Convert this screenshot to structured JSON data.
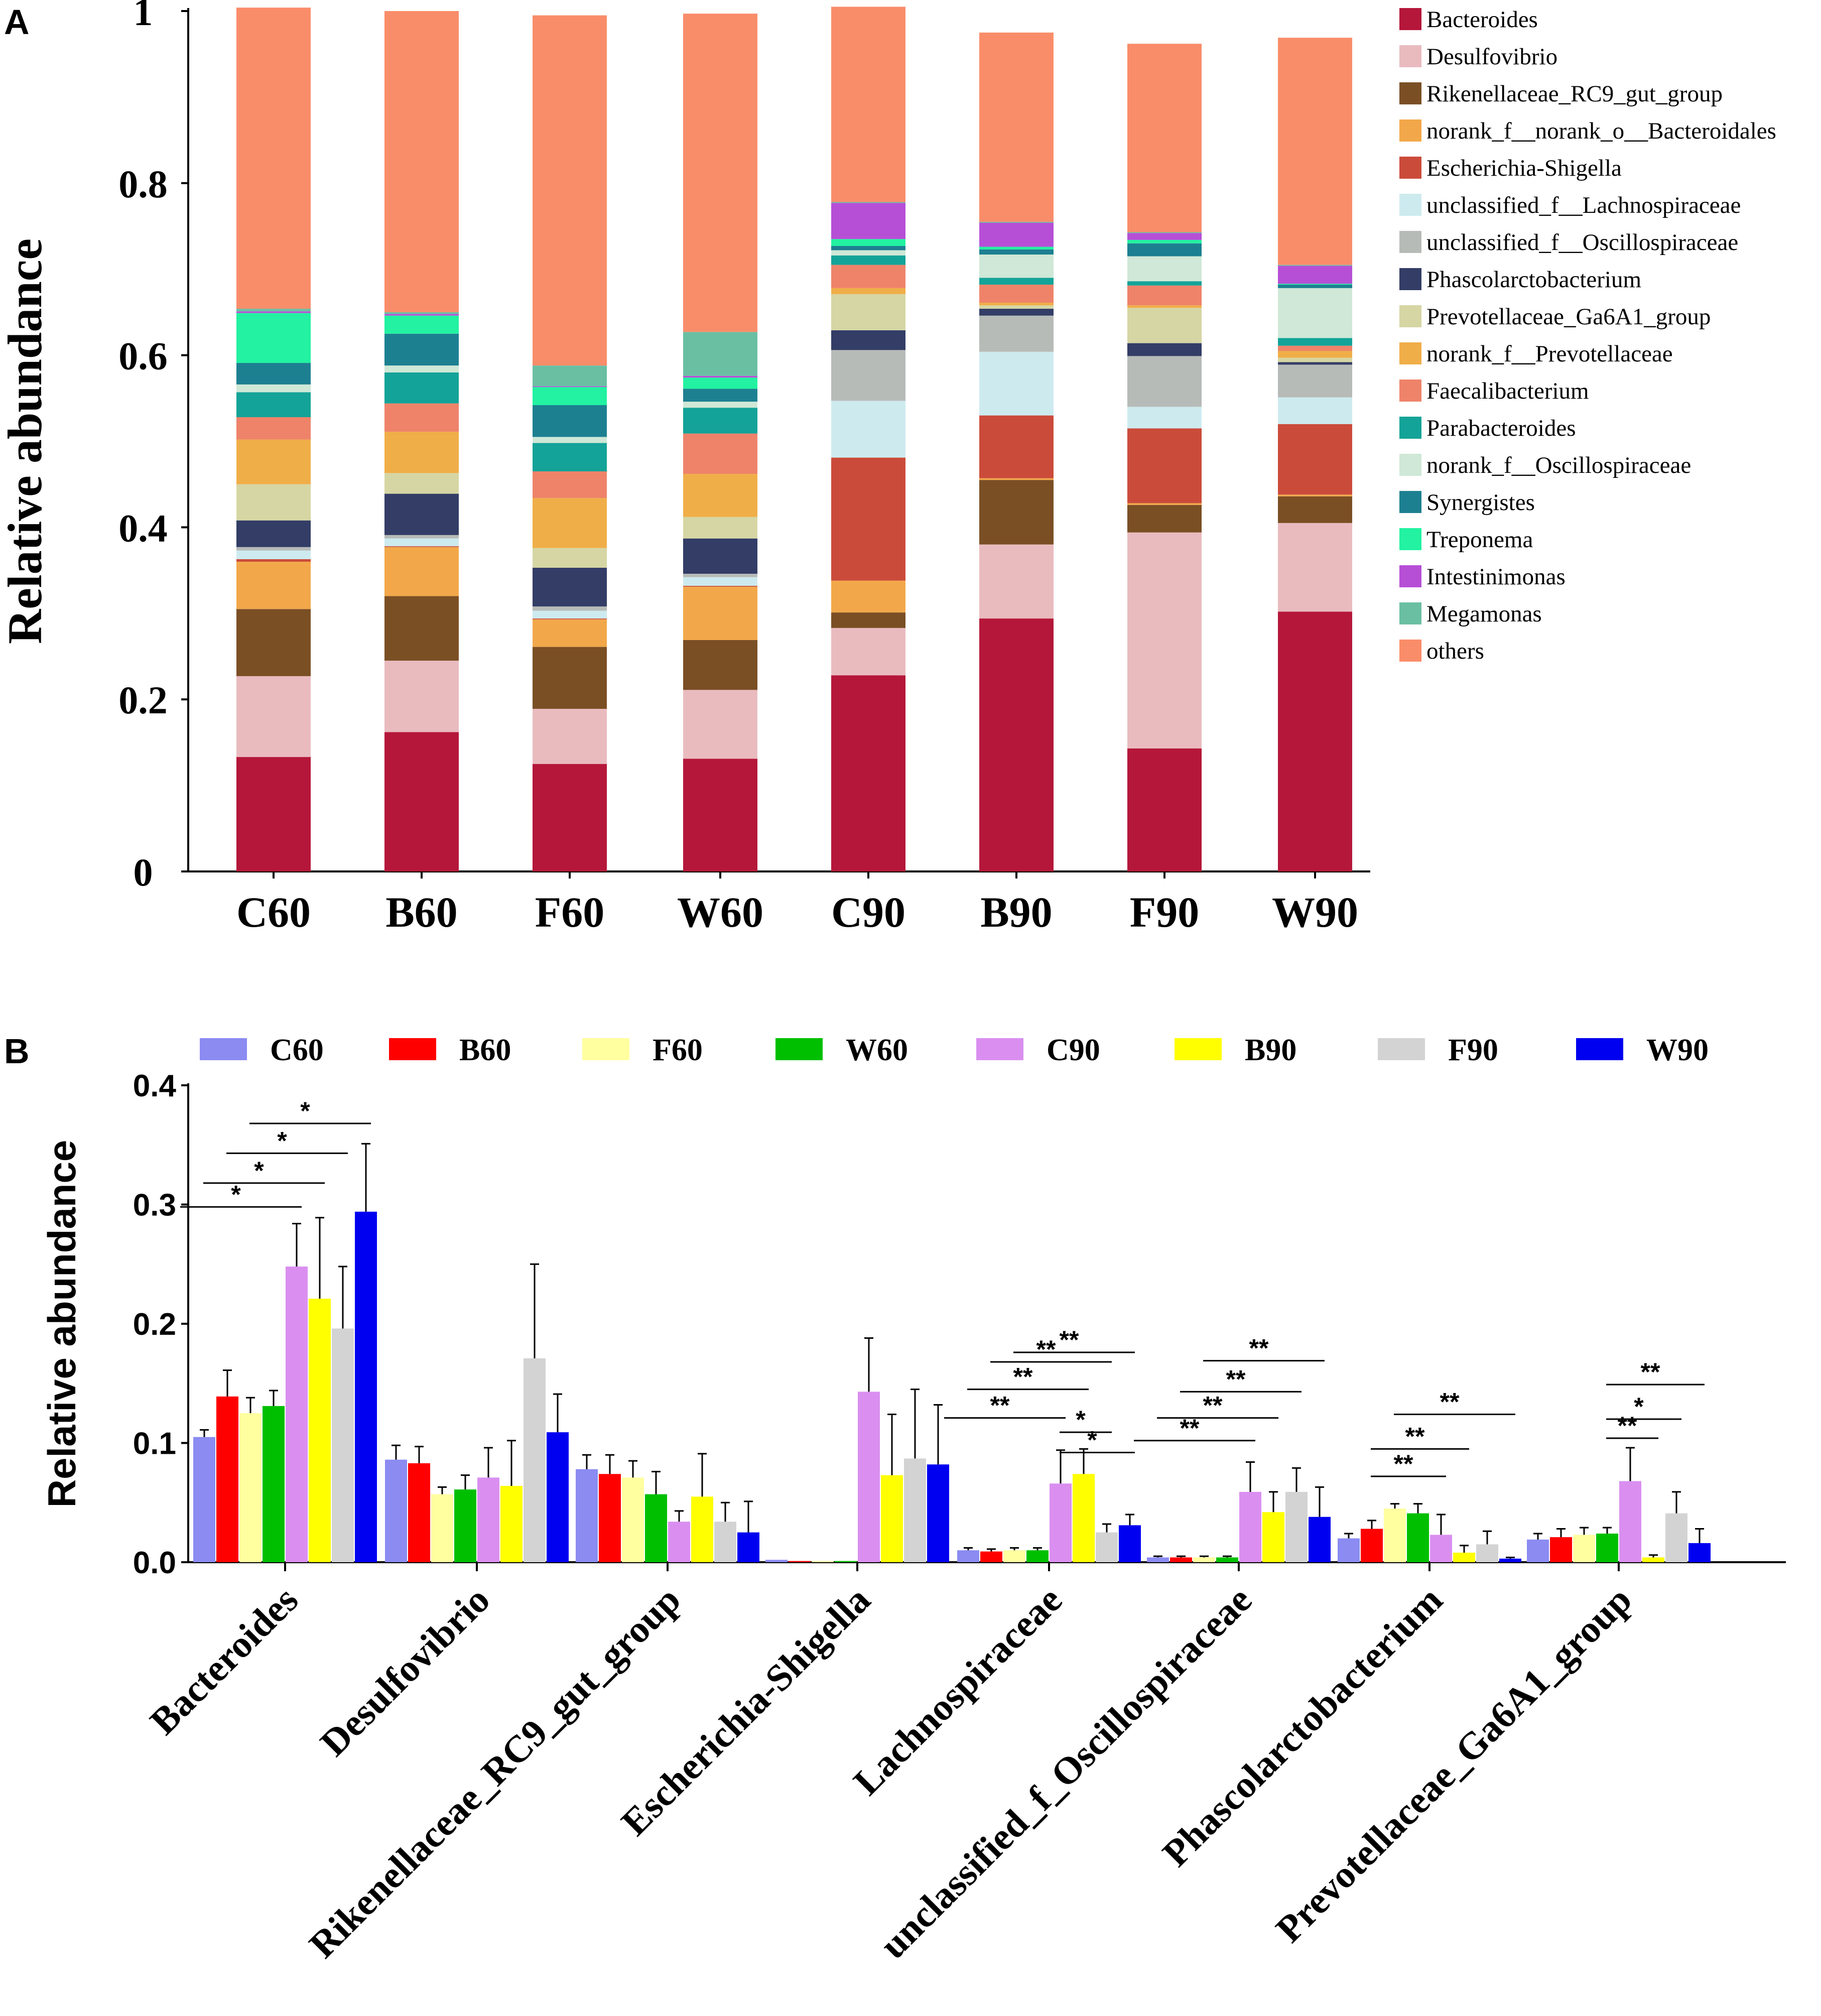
{
  "panel_labels": {
    "a": "A",
    "b": "B"
  },
  "chart_data": [
    {
      "type": "bar",
      "stacked": true,
      "panel": "A",
      "ylabel": "Relative abundance",
      "xlabel": "",
      "ylim": [
        0,
        1
      ],
      "yticks": [
        "0",
        "0.2",
        "0.4",
        "0.6",
        "0.8",
        "1"
      ],
      "ytick_values": [
        0,
        0.2,
        0.4,
        0.6,
        0.8,
        1
      ],
      "categories": [
        "C60",
        "B60",
        "F60",
        "W60",
        "C90",
        "B90",
        "F90",
        "W90"
      ],
      "legend_position": "right",
      "series": [
        {
          "name": "Bacteroides",
          "color": "#B5173A",
          "values": [
            0.133,
            0.162,
            0.125,
            0.131,
            0.228,
            0.294,
            0.143,
            0.302
          ]
        },
        {
          "name": "Desulfovibrio",
          "color": "#E9BBBF",
          "values": [
            0.094,
            0.083,
            0.064,
            0.08,
            0.055,
            0.086,
            0.251,
            0.103
          ]
        },
        {
          "name": "Rikenellaceae_RC9_gut_group",
          "color": "#7B4F24",
          "values": [
            0.078,
            0.075,
            0.072,
            0.058,
            0.018,
            0.075,
            0.032,
            0.031
          ]
        },
        {
          "name": "norank_f__norank_o__Bacteroidales",
          "color": "#F2A84A",
          "values": [
            0.055,
            0.057,
            0.032,
            0.062,
            0.037,
            0.002,
            0.002,
            0.002
          ]
        },
        {
          "name": "Escherichia-Shigella",
          "color": "#CB4B3A",
          "values": [
            0.003,
            0.001,
            0.001,
            0.001,
            0.143,
            0.073,
            0.087,
            0.082
          ]
        },
        {
          "name": "unclassified_f__Lachnospiraceae",
          "color": "#CDEBEF",
          "values": [
            0.01,
            0.009,
            0.009,
            0.01,
            0.066,
            0.074,
            0.025,
            0.031
          ]
        },
        {
          "name": "unclassified_f__Oscillospiraceae",
          "color": "#B7BBB8",
          "values": [
            0.004,
            0.004,
            0.005,
            0.004,
            0.059,
            0.042,
            0.059,
            0.038
          ]
        },
        {
          "name": "Phascolarctobacterium",
          "color": "#333D66",
          "values": [
            0.031,
            0.048,
            0.045,
            0.041,
            0.023,
            0.008,
            0.015,
            0.003
          ]
        },
        {
          "name": "Prevotellaceae_Ga6A1_group",
          "color": "#D6D6A4",
          "values": [
            0.042,
            0.024,
            0.023,
            0.025,
            0.042,
            0.004,
            0.041,
            0.005
          ]
        },
        {
          "name": "norank_f__Prevotellaceae",
          "color": "#F0AE48",
          "values": [
            0.052,
            0.048,
            0.058,
            0.05,
            0.007,
            0.003,
            0.003,
            0.008
          ]
        },
        {
          "name": "Faecalibacterium",
          "color": "#EE836A",
          "values": [
            0.026,
            0.033,
            0.031,
            0.047,
            0.027,
            0.021,
            0.023,
            0.006
          ]
        },
        {
          "name": "Parabacteroides",
          "color": "#14A398",
          "values": [
            0.029,
            0.036,
            0.033,
            0.03,
            0.011,
            0.008,
            0.005,
            0.009
          ]
        },
        {
          "name": "norank_f__Oscillospiraceae",
          "color": "#CFE8D7",
          "values": [
            0.009,
            0.008,
            0.007,
            0.007,
            0.006,
            0.027,
            0.029,
            0.058
          ]
        },
        {
          "name": "Synergistes",
          "color": "#1D8091",
          "values": [
            0.025,
            0.037,
            0.037,
            0.015,
            0.005,
            0.006,
            0.015,
            0.004
          ]
        },
        {
          "name": "Treponema",
          "color": "#22F2A1",
          "values": [
            0.058,
            0.021,
            0.021,
            0.013,
            0.008,
            0.003,
            0.004,
            0.001
          ]
        },
        {
          "name": "Intestinimonas",
          "color": "#B64FD6",
          "values": [
            0.002,
            0.002,
            0.001,
            0.002,
            0.042,
            0.028,
            0.008,
            0.021
          ]
        },
        {
          "name": "Megamonas",
          "color": "#6ABFA3",
          "values": [
            0.003,
            0.002,
            0.024,
            0.051,
            0.001,
            0.001,
            0.001,
            0.001
          ]
        },
        {
          "name": "others",
          "color": "#F98D6A",
          "values": [
            0.35,
            0.35,
            0.407,
            0.37,
            0.227,
            0.22,
            0.219,
            0.264
          ]
        }
      ]
    },
    {
      "type": "bar",
      "panel": "B",
      "ylabel": "Relative abundance",
      "xlabel": "",
      "ylim": [
        0,
        0.4
      ],
      "yticks": [
        "0.0",
        "0.1",
        "0.2",
        "0.3",
        "0.4"
      ],
      "ytick_values": [
        0,
        0.1,
        0.2,
        0.3,
        0.4
      ],
      "categories": [
        "Bacteroides",
        "Desulfovibrio",
        "Rikenellaceae_RC9_gut_group",
        "Escherichia-Shigella",
        "Lachnospiraceae",
        "unclassified_f_Oscillospiraceae",
        "Phascolarctobacterium",
        "Prevotellaceae_Ga6A1_group"
      ],
      "legend_position": "top",
      "series": [
        {
          "name": "C60",
          "color": "#8B8BF2",
          "values": [
            0.105,
            0.086,
            0.078,
            0.002,
            0.01,
            0.004,
            0.02,
            0.019
          ],
          "errors": [
            0.006,
            0.012,
            0.012,
            0.0,
            0.002,
            0.001,
            0.004,
            0.005
          ]
        },
        {
          "name": "B60",
          "color": "#FF0000",
          "values": [
            0.139,
            0.083,
            0.074,
            0.001,
            0.009,
            0.004,
            0.028,
            0.021
          ],
          "errors": [
            0.022,
            0.014,
            0.016,
            0.0,
            0.002,
            0.001,
            0.007,
            0.007
          ]
        },
        {
          "name": "F60",
          "color": "#FFFFA0",
          "values": [
            0.125,
            0.057,
            0.071,
            0.001,
            0.01,
            0.004,
            0.045,
            0.023
          ],
          "errors": [
            0.013,
            0.006,
            0.014,
            0.0,
            0.002,
            0.001,
            0.004,
            0.006
          ]
        },
        {
          "name": "W60",
          "color": "#00BF00",
          "values": [
            0.131,
            0.061,
            0.057,
            0.001,
            0.01,
            0.004,
            0.041,
            0.024
          ],
          "errors": [
            0.013,
            0.012,
            0.019,
            0.0,
            0.002,
            0.001,
            0.008,
            0.005
          ]
        },
        {
          "name": "C90",
          "color": "#DA8FF0",
          "values": [
            0.248,
            0.071,
            0.034,
            0.143,
            0.066,
            0.059,
            0.023,
            0.068
          ],
          "errors": [
            0.036,
            0.025,
            0.009,
            0.045,
            0.028,
            0.025,
            0.017,
            0.028
          ]
        },
        {
          "name": "B90",
          "color": "#FFFF00",
          "values": [
            0.221,
            0.064,
            0.055,
            0.073,
            0.074,
            0.042,
            0.008,
            0.004
          ],
          "errors": [
            0.068,
            0.038,
            0.036,
            0.051,
            0.021,
            0.017,
            0.006,
            0.002
          ]
        },
        {
          "name": "F90",
          "color": "#D3D3D3",
          "values": [
            0.196,
            0.171,
            0.034,
            0.087,
            0.025,
            0.059,
            0.015,
            0.041
          ],
          "errors": [
            0.052,
            0.079,
            0.016,
            0.058,
            0.007,
            0.02,
            0.011,
            0.018
          ]
        },
        {
          "name": "W90",
          "color": "#0000F0",
          "values": [
            0.294,
            0.109,
            0.025,
            0.082,
            0.031,
            0.038,
            0.003,
            0.016
          ],
          "errors": [
            0.057,
            0.032,
            0.026,
            0.05,
            0.009,
            0.025,
            0.001,
            0.012
          ]
        }
      ],
      "annotations": [
        {
          "category": "Bacteroides",
          "from": "C60",
          "to": "C90",
          "label": "*",
          "level": 0.298
        },
        {
          "category": "Bacteroides",
          "from": "B60",
          "to": "B90",
          "label": "*",
          "level": 0.318
        },
        {
          "category": "Bacteroides",
          "from": "F60",
          "to": "F90",
          "label": "*",
          "level": 0.343
        },
        {
          "category": "Bacteroides",
          "from": "W60",
          "to": "W90",
          "label": "*",
          "level": 0.368
        },
        {
          "category": "Lachnospiraceae",
          "from": "C60",
          "to": "C90",
          "label": "**",
          "level": 0.121
        },
        {
          "category": "Lachnospiraceae",
          "from": "B60",
          "to": "B90",
          "label": "**",
          "level": 0.145
        },
        {
          "category": "Lachnospiraceae",
          "from": "F60",
          "to": "F90",
          "label": "**",
          "level": 0.168
        },
        {
          "category": "Lachnospiraceae",
          "from": "W60",
          "to": "W90",
          "label": "**",
          "level": 0.176
        },
        {
          "category": "Lachnospiraceae",
          "from": "B90",
          "to": "W90",
          "label": "*",
          "level": 0.092
        },
        {
          "category": "Lachnospiraceae",
          "from": "B90",
          "to": "F90",
          "label": "*",
          "level": 0.109
        },
        {
          "category": "unclassified_f_Oscillospiraceae",
          "from": "C60",
          "to": "C90",
          "label": "**",
          "level": 0.102
        },
        {
          "category": "unclassified_f_Oscillospiraceae",
          "from": "B60",
          "to": "B90",
          "label": "**",
          "level": 0.121
        },
        {
          "category": "unclassified_f_Oscillospiraceae",
          "from": "F60",
          "to": "F90",
          "label": "**",
          "level": 0.143
        },
        {
          "category": "unclassified_f_Oscillospiraceae",
          "from": "W60",
          "to": "W90",
          "label": "**",
          "level": 0.169
        },
        {
          "category": "Phascolarctobacterium",
          "from": "F60",
          "to": "C90",
          "label": "**",
          "level": 0.072
        },
        {
          "category": "Phascolarctobacterium",
          "from": "F60",
          "to": "B90",
          "label": "**",
          "level": 0.095
        },
        {
          "category": "Phascolarctobacterium",
          "from": "W60",
          "to": "W90",
          "label": "**",
          "level": 0.124
        },
        {
          "category": "Prevotellaceae_Ga6A1_group",
          "from": "C90",
          "to": "B90",
          "label": "**",
          "level": 0.104
        },
        {
          "category": "Prevotellaceae_Ga6A1_group",
          "from": "C90",
          "to": "F90",
          "label": "*",
          "level": 0.12
        },
        {
          "category": "Prevotellaceae_Ga6A1_group",
          "from": "C90",
          "to": "W90",
          "label": "**",
          "level": 0.149
        }
      ]
    }
  ]
}
